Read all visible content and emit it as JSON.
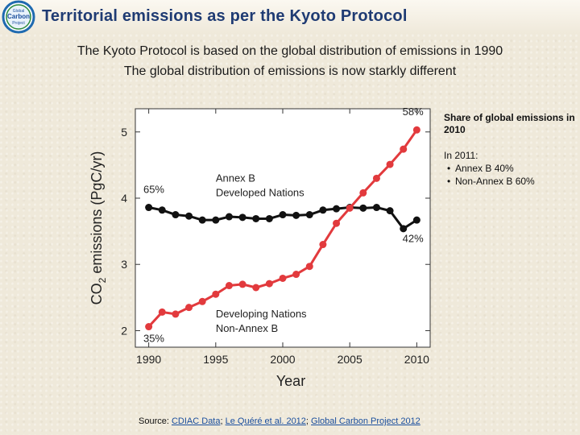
{
  "header": {
    "title": "Territorial emissions as per the Kyoto Protocol",
    "logo_text": [
      "Global",
      "Carbon",
      "Project"
    ]
  },
  "subtitles": [
    "The Kyoto Protocol is based on the global distribution of emissions in 1990",
    "The global distribution of emissions is now starkly different"
  ],
  "side_note": {
    "heading": "Share of global emissions in 2010",
    "year_label": "In 2011:",
    "items": [
      "Annex B 40%",
      "Non-Annex B 60%"
    ]
  },
  "source": {
    "prefix": "Source: ",
    "links": [
      "CDIAC Data",
      "Le Quéré et al. 2012",
      "Global Carbon Project 2012"
    ],
    "separator": "; "
  },
  "chart_data": {
    "type": "line",
    "title": "",
    "xlabel": "Year",
    "ylabel_parts": [
      "CO",
      "2",
      " emissions (PgC/yr)"
    ],
    "xlim": [
      1989,
      2011
    ],
    "ylim": [
      1.75,
      5.35
    ],
    "x_ticks": [
      1990,
      1995,
      2000,
      2005,
      2010
    ],
    "y_ticks": [
      2,
      3,
      4,
      5
    ],
    "x": [
      1990,
      1991,
      1992,
      1993,
      1994,
      1995,
      1996,
      1997,
      1998,
      1999,
      2000,
      2001,
      2002,
      2003,
      2004,
      2005,
      2006,
      2007,
      2008,
      2009,
      2010
    ],
    "series": [
      {
        "name": "Annex B / Developed Nations",
        "color": "#111111",
        "label_lines": [
          "Annex B",
          "Developed Nations"
        ],
        "values": [
          3.86,
          3.82,
          3.75,
          3.73,
          3.67,
          3.67,
          3.72,
          3.71,
          3.69,
          3.69,
          3.75,
          3.74,
          3.75,
          3.82,
          3.84,
          3.86,
          3.85,
          3.86,
          3.81,
          3.54,
          3.67
        ],
        "start_pct": "65%",
        "end_pct": "42%"
      },
      {
        "name": "Developing Nations / Non-Annex B",
        "color": "#e23a3d",
        "label_lines": [
          "Developing Nations",
          "Non-Annex B"
        ],
        "values": [
          2.06,
          2.28,
          2.25,
          2.35,
          2.44,
          2.55,
          2.68,
          2.7,
          2.65,
          2.71,
          2.79,
          2.85,
          2.97,
          3.3,
          3.62,
          3.85,
          4.08,
          4.3,
          4.51,
          4.74,
          5.03
        ],
        "start_pct": "35%",
        "end_pct": "58%"
      }
    ],
    "grid": false,
    "legend": "inline"
  }
}
